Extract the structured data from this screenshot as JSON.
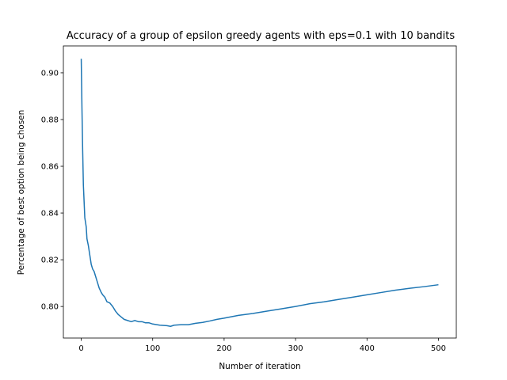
{
  "chart_data": {
    "type": "line",
    "title": "Accuracy of a group of epsilon greedy agents with eps=0.1 with 10 bandits",
    "xlabel": "Number of iteration",
    "ylabel": "Percentage of best option being chosen",
    "xlim": [
      -25,
      525
    ],
    "ylim": [
      0.7865,
      0.9115
    ],
    "xticks": [
      0,
      100,
      200,
      300,
      400,
      500
    ],
    "yticks": [
      0.8,
      0.82,
      0.84,
      0.86,
      0.88,
      0.9
    ],
    "ytick_labels": [
      "0.80",
      "0.82",
      "0.84",
      "0.86",
      "0.88",
      "0.90"
    ],
    "grid": false,
    "series": [
      {
        "color": "#1f77b4",
        "x": [
          0,
          1,
          2,
          3,
          4,
          5,
          6,
          7,
          8,
          10,
          12,
          14,
          16,
          18,
          20,
          22,
          25,
          28,
          30,
          33,
          36,
          40,
          44,
          48,
          52,
          56,
          60,
          65,
          70,
          75,
          80,
          85,
          90,
          95,
          100,
          110,
          120,
          125,
          130,
          140,
          150,
          160,
          170,
          180,
          190,
          200,
          220,
          240,
          260,
          280,
          300,
          320,
          340,
          360,
          380,
          400,
          420,
          440,
          460,
          480,
          500
        ],
        "y": [
          0.906,
          0.885,
          0.867,
          0.852,
          0.845,
          0.838,
          0.836,
          0.834,
          0.829,
          0.826,
          0.822,
          0.818,
          0.816,
          0.815,
          0.813,
          0.811,
          0.808,
          0.806,
          0.805,
          0.804,
          0.802,
          0.8015,
          0.8,
          0.798,
          0.7965,
          0.7955,
          0.7945,
          0.794,
          0.7935,
          0.794,
          0.7935,
          0.7935,
          0.793,
          0.793,
          0.7925,
          0.792,
          0.7918,
          0.7915,
          0.792,
          0.7922,
          0.7922,
          0.7928,
          0.7932,
          0.7938,
          0.7945,
          0.795,
          0.7962,
          0.797,
          0.798,
          0.799,
          0.8,
          0.8012,
          0.802,
          0.803,
          0.804,
          0.805,
          0.806,
          0.807,
          0.8078,
          0.8085,
          0.8093
        ]
      }
    ]
  }
}
